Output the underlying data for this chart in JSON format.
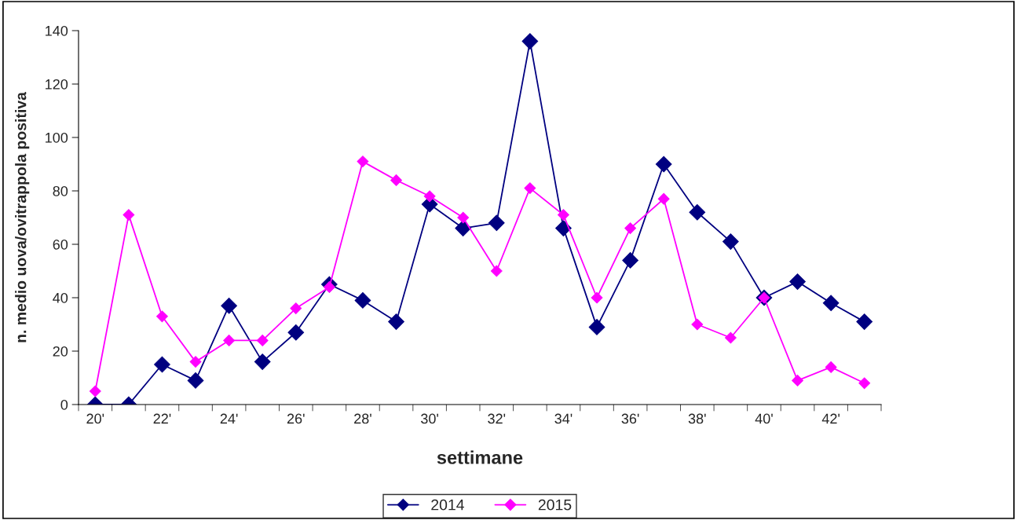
{
  "chart_data": {
    "type": "line",
    "xlabel": "settimane",
    "ylabel": "n. medio uova/ovitrappola positiva",
    "categories": [
      "20'",
      null,
      "22'",
      null,
      "24'",
      null,
      "26'",
      null,
      "28'",
      null,
      "30'",
      null,
      "32'",
      null,
      "34'",
      null,
      "36'",
      null,
      "38'",
      null,
      "40'",
      null,
      "42'",
      null
    ],
    "series": [
      {
        "name": "2014",
        "color": "#000080",
        "values": [
          0,
          0,
          15,
          9,
          37,
          16,
          27,
          45,
          39,
          31,
          75,
          66,
          68,
          136,
          66,
          29,
          54,
          90,
          72,
          61,
          40,
          46,
          38,
          31
        ]
      },
      {
        "name": "2015",
        "color": "#ff00ff",
        "values": [
          5,
          71,
          33,
          16,
          24,
          24,
          36,
          44,
          91,
          84,
          78,
          70,
          50,
          81,
          71,
          40,
          66,
          77,
          30,
          25,
          40,
          9,
          14,
          8
        ]
      }
    ],
    "ylim": [
      0,
      140
    ],
    "yticks": [
      0,
      20,
      40,
      60,
      80,
      100,
      120,
      140
    ],
    "grid": false,
    "legend": "bottom",
    "marker": "diamond",
    "line_style": "solid"
  }
}
